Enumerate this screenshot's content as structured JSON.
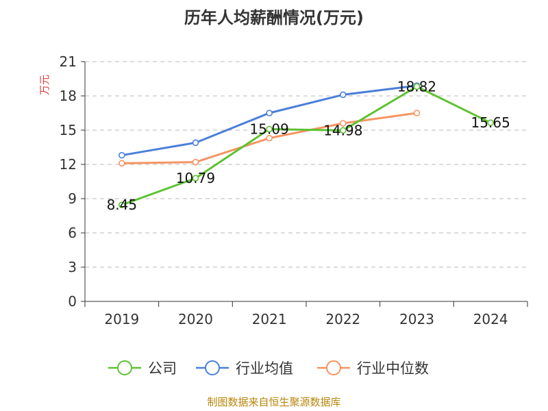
{
  "chart_data": {
    "type": "line",
    "title": "历年人均薪酬情况(万元)",
    "ylabel": "万元",
    "xlabel": "",
    "categories": [
      "2019",
      "2020",
      "2021",
      "2022",
      "2023",
      "2024"
    ],
    "ylim": [
      0,
      21
    ],
    "yticks": [
      0,
      3,
      6,
      9,
      12,
      15,
      18,
      21
    ],
    "ytick_labels": [
      "0",
      "3",
      "6",
      "9",
      "12",
      "15",
      "18",
      "21"
    ],
    "grid": true,
    "legend_position": "bottom",
    "series": [
      {
        "name": "公司",
        "color": "#5ec232",
        "values": [
          8.45,
          10.79,
          15.09,
          14.98,
          18.82,
          15.65
        ],
        "labels": [
          "8.45",
          "10.79",
          "15.09",
          "14.98",
          "18.82",
          "15.65"
        ]
      },
      {
        "name": "行业均值",
        "color": "#4a7fd8",
        "values": [
          12.8,
          13.9,
          16.5,
          18.1,
          18.9,
          null
        ]
      },
      {
        "name": "行业中位数",
        "color": "#f59461",
        "values": [
          12.1,
          12.2,
          14.3,
          15.6,
          16.5,
          null
        ]
      }
    ]
  },
  "source": "制图数据来自恒生聚源数据库"
}
